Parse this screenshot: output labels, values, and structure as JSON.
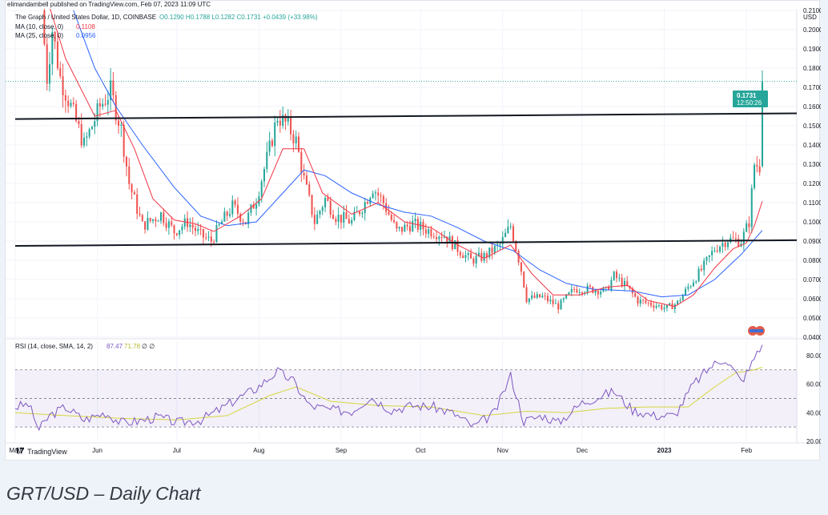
{
  "publisher_line": "elimandambell published on TradingView.com, Feb 07, 2023 11:09 UTC",
  "header": {
    "symbol": "The Graph / United States Dollar, 1D, COINBASE",
    "ohlc": "O0.1290 H0.1788 L0.1282 C0.1731 +0.0439 (+33.98%)"
  },
  "indicators": {
    "ma10_label": "MA (10, close, 0)",
    "ma10_value": "0.1108",
    "ma25_label": "MA (25, close, 0)",
    "ma25_value": "0.0956",
    "rsi_label": "RSI (14, close, SMA, 14, 2)",
    "rsi_value": "87.47",
    "rsi_sma_value": "71.78",
    "rsi_extra": "∅ ∅"
  },
  "currency": "USD",
  "last_price": {
    "value": "0.1731",
    "countdown": "12:50:26"
  },
  "brand": "TradingView",
  "caption": "GRT/USD – Daily Chart",
  "colors": {
    "up": "#26a69a",
    "down": "#ef5350",
    "ma10": "#f23645",
    "ma25": "#2962ff",
    "rsi": "#7e57c2",
    "rsi_sma": "#d6d63e",
    "trendline": "#131722"
  },
  "chart_data": [
    {
      "type": "candlestick",
      "title": "The Graph / United States Dollar, 1D, COINBASE",
      "ylabel": "USD",
      "ylim": [
        0.04,
        0.21
      ],
      "yticks": [
        "0.2100",
        "0.2000",
        "0.1900",
        "0.1800",
        "0.1700",
        "0.1600",
        "0.1500",
        "0.1400",
        "0.1300",
        "0.1200",
        "0.1100",
        "0.1000",
        "0.0900",
        "0.0800",
        "0.0700",
        "0.0600",
        "0.0500",
        "0.0400"
      ],
      "xticks": [
        "May",
        "Jun",
        "Jul",
        "Aug",
        "Sep",
        "Oct",
        "Nov",
        "Dec",
        "2023",
        "Feb"
      ],
      "x_range": [
        "2022-05-01",
        "2023-02-20"
      ],
      "last_candle": {
        "date": "2023-02-07",
        "open": 0.129,
        "high": 0.1788,
        "low": 0.1282,
        "close": 0.1731
      },
      "close_path": [
        [
          "2022-05-11",
          0.21
        ],
        [
          "2022-05-13",
          0.175
        ],
        [
          "2022-05-15",
          0.2
        ],
        [
          "2022-05-18",
          0.175
        ],
        [
          "2022-05-22",
          0.16
        ],
        [
          "2022-05-27",
          0.14
        ],
        [
          "2022-06-02",
          0.16
        ],
        [
          "2022-06-06",
          0.168
        ],
        [
          "2022-06-10",
          0.148
        ],
        [
          "2022-06-13",
          0.12
        ],
        [
          "2022-06-18",
          0.098
        ],
        [
          "2022-06-25",
          0.104
        ],
        [
          "2022-06-30",
          0.095
        ],
        [
          "2022-07-05",
          0.1
        ],
        [
          "2022-07-10",
          0.093
        ],
        [
          "2022-07-14",
          0.09
        ],
        [
          "2022-07-18",
          0.1
        ],
        [
          "2022-07-22",
          0.108
        ],
        [
          "2022-07-27",
          0.1
        ],
        [
          "2022-07-31",
          0.112
        ],
        [
          "2022-08-05",
          0.138
        ],
        [
          "2022-08-08",
          0.155
        ],
        [
          "2022-08-12",
          0.15
        ],
        [
          "2022-08-15",
          0.142
        ],
        [
          "2022-08-18",
          0.122
        ],
        [
          "2022-08-22",
          0.1
        ],
        [
          "2022-08-26",
          0.112
        ],
        [
          "2022-08-30",
          0.103
        ],
        [
          "2022-09-05",
          0.1
        ],
        [
          "2022-09-10",
          0.11
        ],
        [
          "2022-09-13",
          0.118
        ],
        [
          "2022-09-17",
          0.11
        ],
        [
          "2022-09-22",
          0.095
        ],
        [
          "2022-09-28",
          0.099
        ],
        [
          "2022-10-03",
          0.096
        ],
        [
          "2022-10-10",
          0.093
        ],
        [
          "2022-10-15",
          0.086
        ],
        [
          "2022-10-20",
          0.08
        ],
        [
          "2022-10-25",
          0.082
        ],
        [
          "2022-10-31",
          0.088
        ],
        [
          "2022-11-04",
          0.098
        ],
        [
          "2022-11-08",
          0.075
        ],
        [
          "2022-11-10",
          0.06
        ],
        [
          "2022-11-16",
          0.061
        ],
        [
          "2022-11-22",
          0.056
        ],
        [
          "2022-11-28",
          0.065
        ],
        [
          "2022-12-04",
          0.065
        ],
        [
          "2022-12-10",
          0.064
        ],
        [
          "2022-12-13",
          0.072
        ],
        [
          "2022-12-18",
          0.066
        ],
        [
          "2022-12-22",
          0.059
        ],
        [
          "2022-12-28",
          0.057
        ],
        [
          "2023-01-02",
          0.055
        ],
        [
          "2023-01-06",
          0.058
        ],
        [
          "2023-01-10",
          0.066
        ],
        [
          "2023-01-15",
          0.075
        ],
        [
          "2023-01-20",
          0.086
        ],
        [
          "2023-01-25",
          0.091
        ],
        [
          "2023-01-30",
          0.09
        ],
        [
          "2023-02-02",
          0.1
        ],
        [
          "2023-02-04",
          0.13
        ],
        [
          "2023-02-06",
          0.129
        ],
        [
          "2023-02-07",
          0.1731
        ]
      ],
      "ma10_path": [
        [
          "2022-05-11",
          0.225
        ],
        [
          "2022-05-20",
          0.185
        ],
        [
          "2022-05-31",
          0.155
        ],
        [
          "2022-06-08",
          0.158
        ],
        [
          "2022-06-15",
          0.138
        ],
        [
          "2022-06-22",
          0.112
        ],
        [
          "2022-06-30",
          0.101
        ],
        [
          "2022-07-08",
          0.099
        ],
        [
          "2022-07-15",
          0.095
        ],
        [
          "2022-07-25",
          0.103
        ],
        [
          "2022-08-02",
          0.112
        ],
        [
          "2022-08-10",
          0.138
        ],
        [
          "2022-08-18",
          0.138
        ],
        [
          "2022-08-25",
          0.115
        ],
        [
          "2022-09-05",
          0.104
        ],
        [
          "2022-09-15",
          0.11
        ],
        [
          "2022-09-25",
          0.1
        ],
        [
          "2022-10-05",
          0.097
        ],
        [
          "2022-10-15",
          0.088
        ],
        [
          "2022-10-25",
          0.081
        ],
        [
          "2022-11-04",
          0.088
        ],
        [
          "2022-11-12",
          0.073
        ],
        [
          "2022-11-20",
          0.062
        ],
        [
          "2022-11-30",
          0.062
        ],
        [
          "2022-12-10",
          0.066
        ],
        [
          "2022-12-18",
          0.067
        ],
        [
          "2022-12-26",
          0.059
        ],
        [
          "2023-01-05",
          0.056
        ],
        [
          "2023-01-12",
          0.062
        ],
        [
          "2023-01-20",
          0.076
        ],
        [
          "2023-01-27",
          0.086
        ],
        [
          "2023-02-01",
          0.089
        ],
        [
          "2023-02-04",
          0.098
        ],
        [
          "2023-02-07",
          0.1108
        ]
      ],
      "ma25_path": [
        [
          "2022-05-23",
          0.21
        ],
        [
          "2022-05-31",
          0.18
        ],
        [
          "2022-06-08",
          0.16
        ],
        [
          "2022-06-18",
          0.14
        ],
        [
          "2022-06-30",
          0.118
        ],
        [
          "2022-07-10",
          0.103
        ],
        [
          "2022-07-20",
          0.098
        ],
        [
          "2022-07-31",
          0.1
        ],
        [
          "2022-08-10",
          0.115
        ],
        [
          "2022-08-18",
          0.127
        ],
        [
          "2022-08-26",
          0.124
        ],
        [
          "2022-09-05",
          0.115
        ],
        [
          "2022-09-15",
          0.109
        ],
        [
          "2022-09-25",
          0.105
        ],
        [
          "2022-10-05",
          0.103
        ],
        [
          "2022-10-15",
          0.097
        ],
        [
          "2022-10-25",
          0.09
        ],
        [
          "2022-11-05",
          0.085
        ],
        [
          "2022-11-15",
          0.075
        ],
        [
          "2022-11-25",
          0.068
        ],
        [
          "2022-12-05",
          0.065
        ],
        [
          "2022-12-20",
          0.064
        ],
        [
          "2022-12-31",
          0.061
        ],
        [
          "2023-01-10",
          0.062
        ],
        [
          "2023-01-20",
          0.07
        ],
        [
          "2023-01-30",
          0.083
        ],
        [
          "2023-02-07",
          0.0956
        ]
      ],
      "trendlines": [
        {
          "name": "resistance",
          "points": [
            [
              "2022-05-01",
              0.1535
            ],
            [
              "2023-02-22",
              0.1565
            ]
          ]
        },
        {
          "name": "support",
          "points": [
            [
              "2022-05-01",
              0.0875
            ],
            [
              "2023-02-22",
              0.0905
            ]
          ]
        }
      ]
    },
    {
      "type": "line",
      "title": "RSI (14, close, SMA, 14, 2)",
      "ylim": [
        20,
        90
      ],
      "yticks": [
        "80.00",
        "60.00",
        "40.00",
        "20.00"
      ],
      "bands": {
        "upper": 70,
        "middle": 50,
        "lower": 30
      },
      "series": [
        {
          "name": "RSI",
          "points": [
            [
              "2022-05-01",
              44
            ],
            [
              "2022-05-06",
              46
            ],
            [
              "2022-05-10",
              28
            ],
            [
              "2022-05-14",
              38
            ],
            [
              "2022-05-20",
              44
            ],
            [
              "2022-05-27",
              35
            ],
            [
              "2022-06-04",
              40
            ],
            [
              "2022-06-10",
              33
            ],
            [
              "2022-06-16",
              34
            ],
            [
              "2022-06-24",
              37
            ],
            [
              "2022-07-01",
              33
            ],
            [
              "2022-07-10",
              35
            ],
            [
              "2022-07-17",
              42
            ],
            [
              "2022-07-24",
              50
            ],
            [
              "2022-07-31",
              57
            ],
            [
              "2022-08-08",
              69
            ],
            [
              "2022-08-14",
              62
            ],
            [
              "2022-08-20",
              45
            ],
            [
              "2022-08-28",
              42
            ],
            [
              "2022-09-05",
              41
            ],
            [
              "2022-09-12",
              51
            ],
            [
              "2022-09-20",
              42
            ],
            [
              "2022-09-28",
              45
            ],
            [
              "2022-10-06",
              44
            ],
            [
              "2022-10-14",
              39
            ],
            [
              "2022-10-21",
              30
            ],
            [
              "2022-10-29",
              40
            ],
            [
              "2022-11-04",
              66
            ],
            [
              "2022-11-09",
              34
            ],
            [
              "2022-11-16",
              38
            ],
            [
              "2022-11-22",
              33
            ],
            [
              "2022-12-01",
              47
            ],
            [
              "2022-12-13",
              55
            ],
            [
              "2022-12-20",
              42
            ],
            [
              "2022-12-28",
              38
            ],
            [
              "2023-01-05",
              38
            ],
            [
              "2023-01-12",
              60
            ],
            [
              "2023-01-19",
              73
            ],
            [
              "2023-01-24",
              78
            ],
            [
              "2023-01-30",
              62
            ],
            [
              "2023-02-02",
              70
            ],
            [
              "2023-02-05",
              83
            ],
            [
              "2023-02-07",
              87.47
            ]
          ]
        },
        {
          "name": "RSI-based MA",
          "points": [
            [
              "2022-05-01",
              40
            ],
            [
              "2022-05-20",
              38
            ],
            [
              "2022-06-10",
              36
            ],
            [
              "2022-07-01",
              35
            ],
            [
              "2022-07-20",
              38
            ],
            [
              "2022-08-05",
              52
            ],
            [
              "2022-08-15",
              58
            ],
            [
              "2022-08-28",
              48
            ],
            [
              "2022-09-15",
              45
            ],
            [
              "2022-10-05",
              44
            ],
            [
              "2022-10-25",
              38
            ],
            [
              "2022-11-10",
              41
            ],
            [
              "2022-11-25",
              40
            ],
            [
              "2022-12-10",
              43
            ],
            [
              "2022-12-25",
              44
            ],
            [
              "2023-01-10",
              44
            ],
            [
              "2023-01-20",
              58
            ],
            [
              "2023-01-28",
              68
            ],
            [
              "2023-02-04",
              70
            ],
            [
              "2023-02-07",
              71.78
            ]
          ]
        }
      ]
    }
  ]
}
